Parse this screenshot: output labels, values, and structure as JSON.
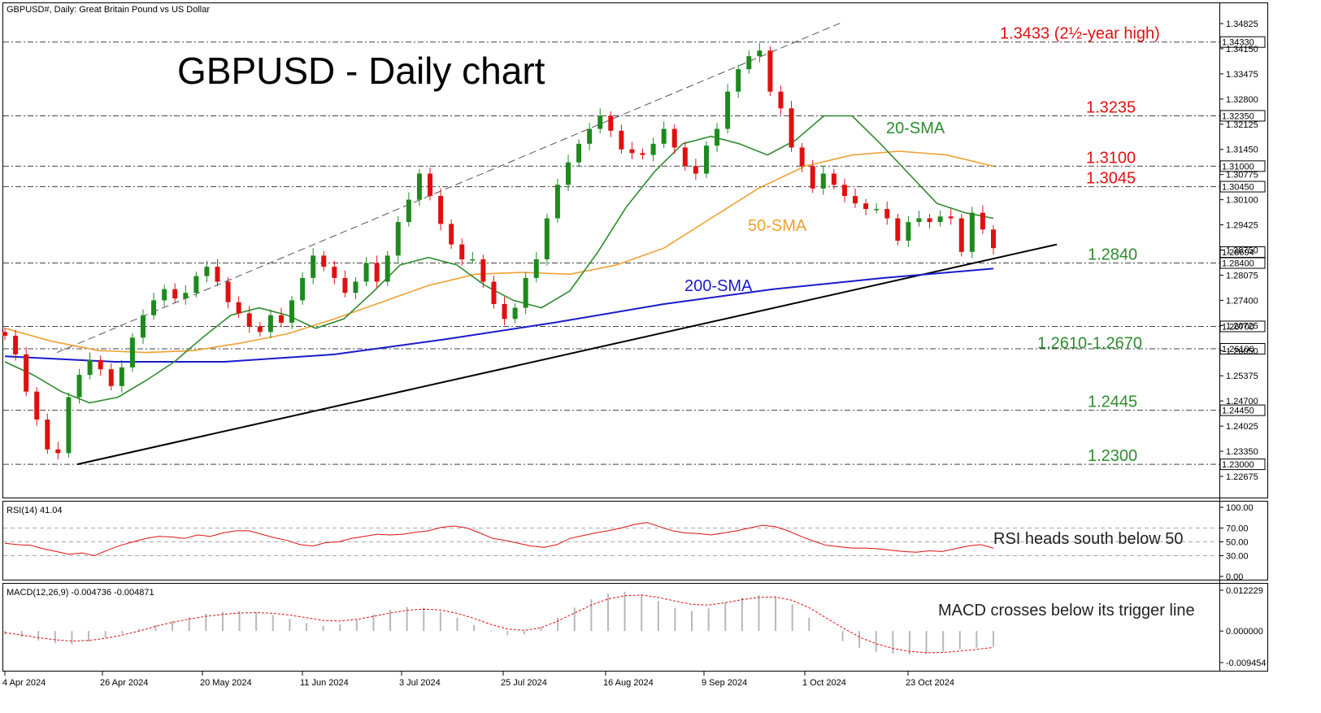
{
  "header": {
    "symbol_line": "GBPUSD#, Daily:  Great Britain Pound vs US Dollar",
    "title": "GBPUSD - Daily chart"
  },
  "colors": {
    "bull": "#1e8a1e",
    "bear": "#e01010",
    "sma20": "#2e8b2e",
    "sma50": "#f0a030",
    "sma200": "#1a1acc",
    "level_red": "#e01010",
    "level_green": "#2e8b2e",
    "rsi": "#e01010",
    "macd_hist": "#b8b8b8",
    "macd_signal": "#e01010"
  },
  "labels": {
    "sma20": "20-SMA",
    "sma50": "50-SMA",
    "sma200": "200-SMA",
    "rsi_note": "RSI heads south below 50",
    "macd_note": "MACD crosses below its trigger line",
    "rsi_header": "RSI(14) 41.04",
    "macd_header": "MACD(12,26,9) -0.004736 -0.004871"
  },
  "chart_data": {
    "type": "candlestick",
    "timeframe": "Daily",
    "y_price_ticks": [
      "1.34825",
      "1.34150",
      "1.33475",
      "1.32800",
      "1.32125",
      "1.31450",
      "1.30775",
      "1.30100",
      "1.29425",
      "1.28750",
      "1.28075",
      "1.27400",
      "1.26725",
      "1.26050",
      "1.25375",
      "1.24700",
      "1.24025",
      "1.23350",
      "1.22675"
    ],
    "x_date_ticks": [
      "4 Apr 2024",
      "26 Apr 2024",
      "20 May 2024",
      "11 Jun 2024",
      "3 Jul 2024",
      "25 Jul 2024",
      "16 Aug 2024",
      "9 Sep 2024",
      "1 Oct 2024",
      "23 Oct 2024"
    ],
    "levels": [
      {
        "price": 1.3433,
        "label": "1.3433 (2½-year high)",
        "box": "1.34330",
        "color": "red"
      },
      {
        "price": 1.3235,
        "label": "1.3235",
        "box": "1.32350",
        "color": "red"
      },
      {
        "price": 1.31,
        "label": "1.3100",
        "box": "1.31000",
        "color": "red"
      },
      {
        "price": 1.3045,
        "label": "1.3045",
        "box": "1.30450",
        "color": "red"
      },
      {
        "price": 1.284,
        "label": "1.2840",
        "box": "1.28400",
        "color": "green"
      },
      {
        "price": 1.267,
        "label": "1.2610-1.2670",
        "box": "1.26700",
        "color": "green"
      },
      {
        "price": 1.261,
        "label": "",
        "box": "1.26100",
        "color": "green"
      },
      {
        "price": 1.2445,
        "label": "1.2445",
        "box": "1.24450",
        "color": "green"
      },
      {
        "price": 1.23,
        "label": "1.2300",
        "box": "1.23000",
        "color": "green"
      }
    ],
    "current_price_box": "1.28694",
    "close_path": [
      1.2645,
      1.2595,
      1.2495,
      1.242,
      1.234,
      1.233,
      1.248,
      1.254,
      1.258,
      1.2555,
      1.251,
      1.256,
      1.264,
      1.27,
      1.274,
      1.277,
      1.2745,
      1.276,
      1.2805,
      1.283,
      1.279,
      1.2735,
      1.2705,
      1.267,
      1.2655,
      1.27,
      1.268,
      1.274,
      1.28,
      1.286,
      1.283,
      1.28,
      1.276,
      1.279,
      1.284,
      1.279,
      1.286,
      1.295,
      1.301,
      1.308,
      1.302,
      1.2945,
      1.289,
      1.285,
      1.285,
      1.279,
      1.273,
      1.269,
      1.272,
      1.28,
      1.285,
      1.296,
      1.305,
      1.311,
      1.316,
      1.32,
      1.3235,
      1.3195,
      1.3145,
      1.3135,
      1.313,
      1.316,
      1.32,
      1.315,
      1.31,
      1.308,
      1.3155,
      1.32,
      1.33,
      1.336,
      1.3395,
      1.341,
      1.33,
      1.3255,
      1.315,
      1.31,
      1.304,
      1.308,
      1.305,
      1.302,
      1.3,
      1.2985,
      1.2985,
      1.296,
      1.29,
      1.295,
      1.296,
      1.295,
      1.2965,
      1.296,
      1.287,
      1.2975,
      1.293,
      1.288
    ],
    "sma20_path": [
      1.2575,
      1.254,
      1.2495,
      1.2465,
      1.248,
      1.2525,
      1.2575,
      1.264,
      1.27,
      1.272,
      1.27,
      1.2665,
      1.269,
      1.276,
      1.2835,
      1.2855,
      1.2835,
      1.278,
      1.274,
      1.272,
      1.2765,
      1.287,
      1.299,
      1.3085,
      1.316,
      1.318,
      1.316,
      1.313,
      1.317,
      1.3235,
      1.3235,
      1.316,
      1.308,
      1.3,
      1.2975,
      1.296
    ],
    "sma50_path": [
      1.2665,
      1.263,
      1.2605,
      1.26,
      1.2605,
      1.2625,
      1.265,
      1.269,
      1.2735,
      1.278,
      1.281,
      1.2815,
      1.281,
      1.2835,
      1.288,
      1.296,
      1.304,
      1.31,
      1.313,
      1.314,
      1.313,
      1.31
    ],
    "sma200_path": [
      1.259,
      1.2575,
      1.2575,
      1.2595,
      1.2635,
      1.268,
      1.273,
      1.277,
      1.28,
      1.2825
    ],
    "trendline": [
      {
        "date": "23 Apr 2024",
        "price": 1.23
      },
      {
        "date": "11 Nov 2024",
        "price": 1.289
      }
    ],
    "channel_upper": [
      {
        "date": "23 Apr 2024",
        "price": 1.26
      },
      {
        "date": "30 Sep 2024",
        "price": 1.3485
      }
    ],
    "rsi": {
      "ticks": [
        "100.00",
        "70.00",
        "50.00",
        "30.00",
        "0.00"
      ],
      "values": [
        48,
        46,
        45,
        40,
        36,
        32,
        34,
        30,
        38,
        45,
        50,
        55,
        58,
        57,
        55,
        60,
        58,
        63,
        66,
        66,
        61,
        56,
        52,
        46,
        44,
        49,
        50,
        55,
        58,
        61,
        60,
        61,
        64,
        66,
        71,
        73,
        70,
        63,
        55,
        52,
        48,
        44,
        42,
        46,
        55,
        59,
        63,
        66,
        70,
        75,
        78,
        72,
        66,
        63,
        62,
        60,
        63,
        66,
        70,
        74,
        72,
        66,
        58,
        51,
        45,
        43,
        41,
        41,
        40,
        38,
        36,
        35,
        37,
        36,
        40,
        44,
        46,
        41
      ]
    },
    "macd": {
      "ticks": [
        "0.012229",
        "0.000000",
        "-0.009454"
      ],
      "histogram": [
        -0.001,
        -0.0018,
        -0.0028,
        -0.0036,
        -0.004,
        -0.0032,
        -0.002,
        -0.0008,
        0.0006,
        0.0018,
        0.003,
        0.0042,
        0.0052,
        0.0058,
        0.006,
        0.0056,
        0.0048,
        0.0036,
        0.0024,
        0.0016,
        0.002,
        0.0034,
        0.005,
        0.0064,
        0.0072,
        0.007,
        0.0058,
        0.004,
        0.0018,
        -0.0002,
        -0.0012,
        -0.001,
        0.001,
        0.004,
        0.007,
        0.0095,
        0.0112,
        0.0118,
        0.011,
        0.009,
        0.007,
        0.006,
        0.0068,
        0.0085,
        0.01,
        0.0108,
        0.0102,
        0.008,
        0.004,
        0.0,
        -0.003,
        -0.005,
        -0.0062,
        -0.0068,
        -0.007,
        -0.0068,
        -0.0062,
        -0.0055,
        -0.005,
        -0.0047
      ],
      "signal": [
        -0.0005,
        -0.0012,
        -0.002,
        -0.0026,
        -0.003,
        -0.0028,
        -0.0022,
        -0.0012,
        0.0,
        0.0014,
        0.0026,
        0.0036,
        0.0044,
        0.005,
        0.0054,
        0.0055,
        0.0053,
        0.0048,
        0.004,
        0.0032,
        0.003,
        0.0035,
        0.0044,
        0.0054,
        0.0062,
        0.0066,
        0.0063,
        0.0053,
        0.0038,
        0.002,
        0.0006,
        0.0002,
        0.001,
        0.003,
        0.0054,
        0.0078,
        0.0096,
        0.0106,
        0.0108,
        0.0101,
        0.009,
        0.008,
        0.0078,
        0.0085,
        0.0094,
        0.0101,
        0.0102,
        0.0092,
        0.007,
        0.004,
        0.001,
        -0.0018,
        -0.0038,
        -0.0052,
        -0.0061,
        -0.0065,
        -0.0064,
        -0.006,
        -0.0055,
        -0.0049
      ]
    }
  }
}
